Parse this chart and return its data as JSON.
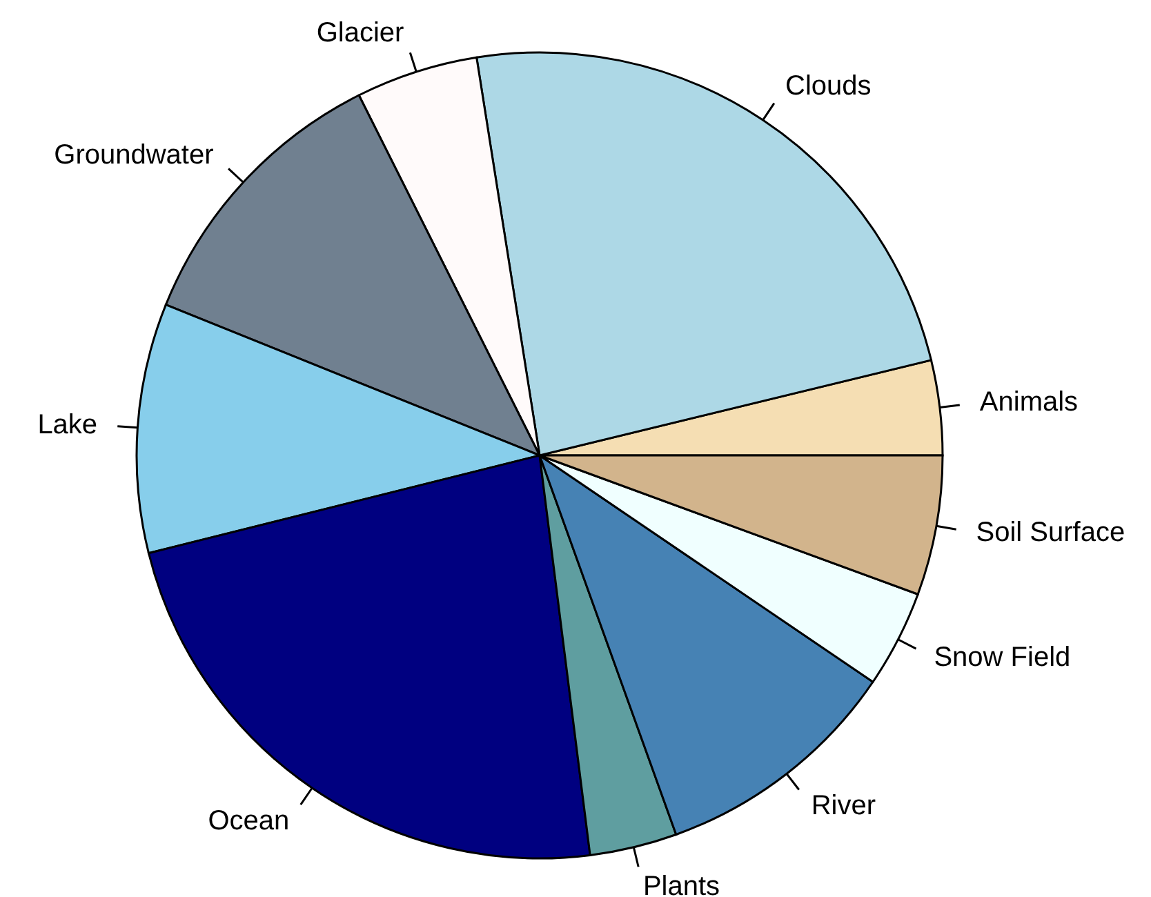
{
  "chart_data": {
    "type": "pie",
    "categories": [
      "Animals",
      "Clouds",
      "Glacier",
      "Groundwater",
      "Lake",
      "Ocean",
      "Plants",
      "River",
      "Snow Field",
      "Soil Surface"
    ],
    "values": [
      3.8,
      23.7,
      4.9,
      11.5,
      10,
      23.1,
      3.5,
      10,
      3.9,
      5.6
    ],
    "colors": [
      "#f5deb3",
      "#add8e6",
      "#fffafa",
      "#708090",
      "#87ceeb",
      "#000080",
      "#5f9ea0",
      "#4682b4",
      "#f0ffff",
      "#d2b48c"
    ]
  }
}
